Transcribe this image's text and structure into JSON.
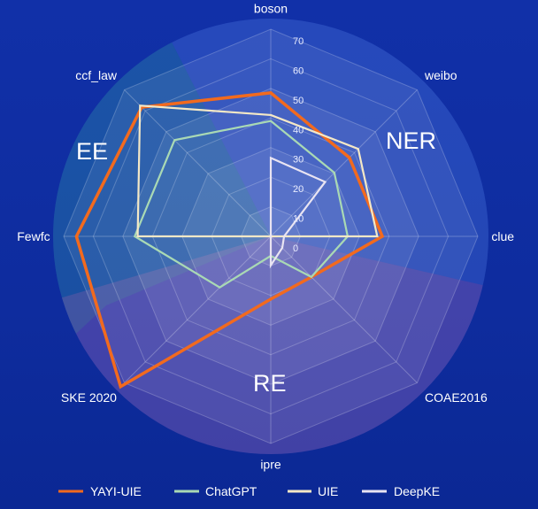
{
  "chart_data": {
    "type": "radar",
    "indicators": [
      "boson",
      "weibo",
      "clue",
      "COAE2016",
      "ipre",
      "SKE 2020",
      "Fewfc",
      "ccf_law"
    ],
    "radial_ticks": [
      "0",
      "10",
      "20",
      "30",
      "40",
      "50",
      "60",
      "70"
    ],
    "range": [
      0,
      70
    ],
    "group_labels": [
      "NER",
      "RE",
      "EE"
    ],
    "legend_position": "bottom",
    "series": [
      {
        "name": "YAYI-UIE",
        "color": "#f26a1e",
        "values": [
          48.5,
          37.6,
          37.7,
          19.4,
          21.2,
          71.8,
          65.7,
          61.7
        ]
      },
      {
        "name": "ChatGPT",
        "color": "#a9d9b4",
        "values": [
          39,
          30.4,
          26,
          19.4,
          6.6,
          24.4,
          46,
          46
        ]
      },
      {
        "name": "UIE",
        "color": "#f4e8c6",
        "values": [
          41,
          41.8,
          36,
          0,
          0,
          0,
          45,
          62.5
        ]
      },
      {
        "name": "DeepKE",
        "color": "#e9e4f2",
        "values": [
          26.5,
          26,
          4.5,
          5.5,
          9.8,
          0,
          0,
          0
        ]
      }
    ]
  }
}
